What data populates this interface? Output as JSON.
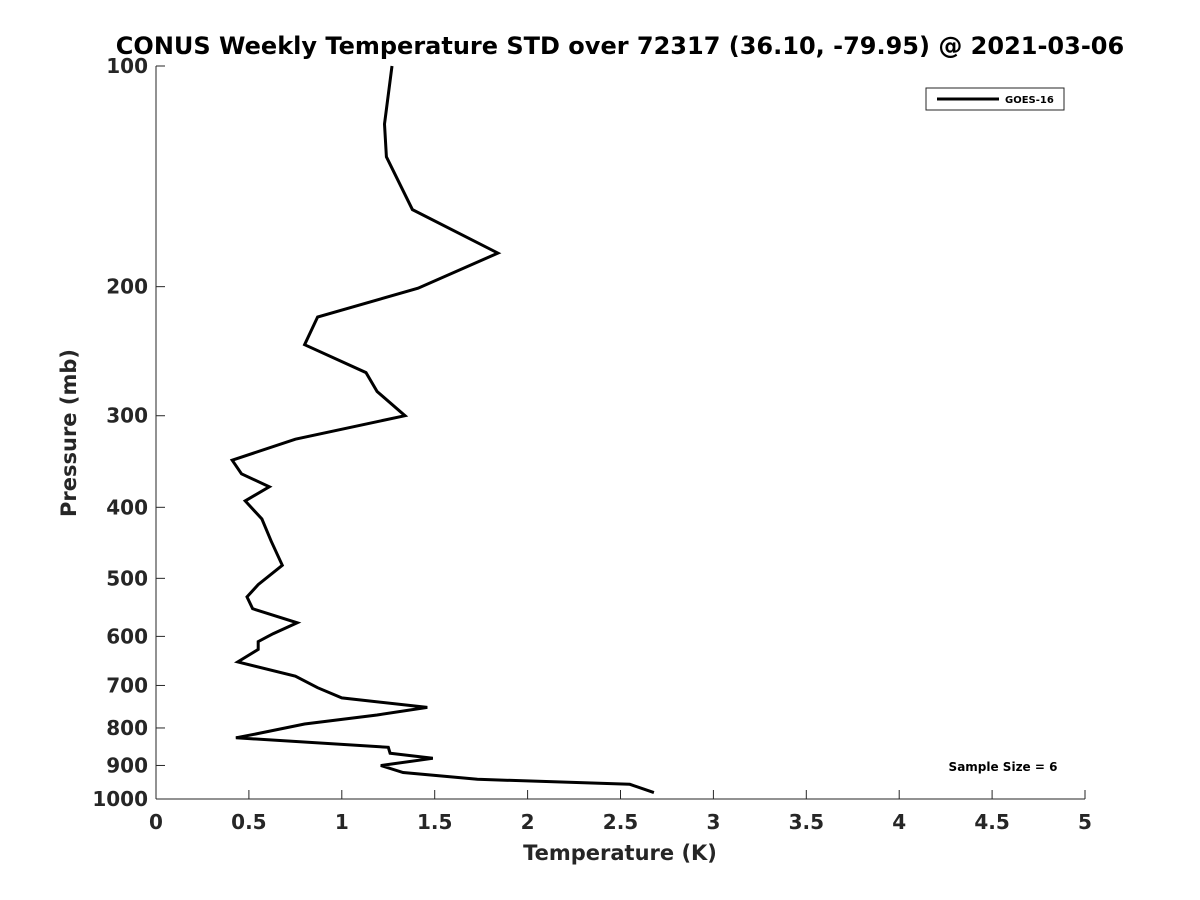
{
  "chart_data": {
    "type": "line",
    "title": "CONUS Weekly Temperature STD over 72317 (36.10, -79.95) @ 2021-03-06",
    "xlabel": "Temperature (K)",
    "ylabel": "Pressure (mb)",
    "xlim": [
      0,
      5
    ],
    "ylim": [
      100,
      1000
    ],
    "y_scale": "log",
    "y_reversed": true,
    "x_ticks": [
      "0",
      "0.5",
      "1",
      "1.5",
      "2",
      "2.5",
      "3",
      "3.5",
      "4",
      "4.5",
      "5"
    ],
    "y_ticks": [
      "100",
      "200",
      "300",
      "400",
      "500",
      "600",
      "700",
      "800",
      "900",
      "1000"
    ],
    "legend_position": "top-right",
    "annotation": "Sample Size = 6",
    "series": [
      {
        "name": "GOES-16",
        "color": "#000000",
        "x": [
          1.27,
          1.23,
          1.24,
          1.38,
          1.84,
          1.41,
          0.87,
          0.8,
          1.13,
          1.19,
          1.34,
          0.75,
          0.41,
          0.46,
          0.61,
          0.48,
          0.57,
          0.62,
          0.68,
          0.55,
          0.49,
          0.52,
          0.76,
          0.63,
          0.55,
          0.55,
          0.44,
          0.75,
          0.87,
          1.0,
          1.46,
          1.19,
          0.8,
          0.54,
          0.43,
          1.25,
          1.26,
          1.49,
          1.21,
          1.33,
          1.73,
          2.55,
          2.68
        ],
        "y": [
          100,
          120,
          133,
          157,
          180,
          201,
          220,
          240,
          262,
          278,
          300,
          323,
          345,
          360,
          375,
          392,
          415,
          445,
          480,
          510,
          530,
          550,
          575,
          595,
          610,
          625,
          650,
          680,
          705,
          728,
          750,
          768,
          790,
          815,
          825,
          850,
          866,
          880,
          900,
          920,
          940,
          955,
          980
        ]
      }
    ]
  }
}
